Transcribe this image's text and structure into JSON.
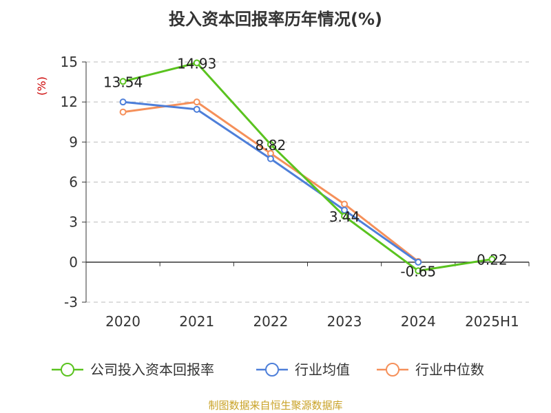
{
  "chart_data": {
    "type": "line",
    "title": "投入资本回报率历年情况(%)",
    "ylabel": "(%)",
    "categories": [
      "2020",
      "2021",
      "2022",
      "2023",
      "2024",
      "2025H1"
    ],
    "yticks": [
      "15",
      "12",
      "9",
      "6",
      "3",
      "0",
      "-3"
    ],
    "ylim": [
      -3,
      15
    ],
    "grid": "horizontal-dashed",
    "legend_position": "bottom",
    "series": [
      {
        "name": "公司投入资本回报率",
        "color": "#5ac31f",
        "values": [
          13.54,
          14.93,
          8.82,
          3.44,
          -0.65,
          0.22
        ],
        "labels": [
          "13.54",
          "14.93",
          "8.82",
          "3.44",
          "-0.65",
          "0.22"
        ]
      },
      {
        "name": "行业均值",
        "color": "#4e7fd9",
        "values": [
          12.0,
          11.45,
          7.75,
          3.9,
          0.0,
          null
        ]
      },
      {
        "name": "行业中位数",
        "color": "#f5905a",
        "values": [
          11.25,
          12.0,
          8.15,
          4.35,
          0.05,
          null
        ]
      }
    ]
  },
  "source": "制图数据来自恒生聚源数据库"
}
